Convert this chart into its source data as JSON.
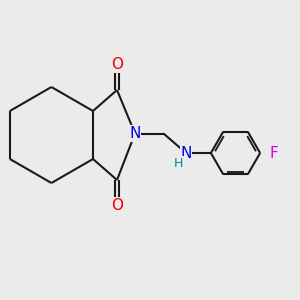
{
  "background_color": "#ebebeb",
  "bond_color": "#1a1a1a",
  "N_color": "#0000ee",
  "O_color": "#ee0000",
  "F_color": "#dd00dd",
  "H_color": "#008888",
  "lw": 1.5,
  "figsize": [
    3.0,
    3.0
  ],
  "dpi": 100,
  "xlim": [
    0,
    10
  ],
  "ylim": [
    0,
    10
  ]
}
